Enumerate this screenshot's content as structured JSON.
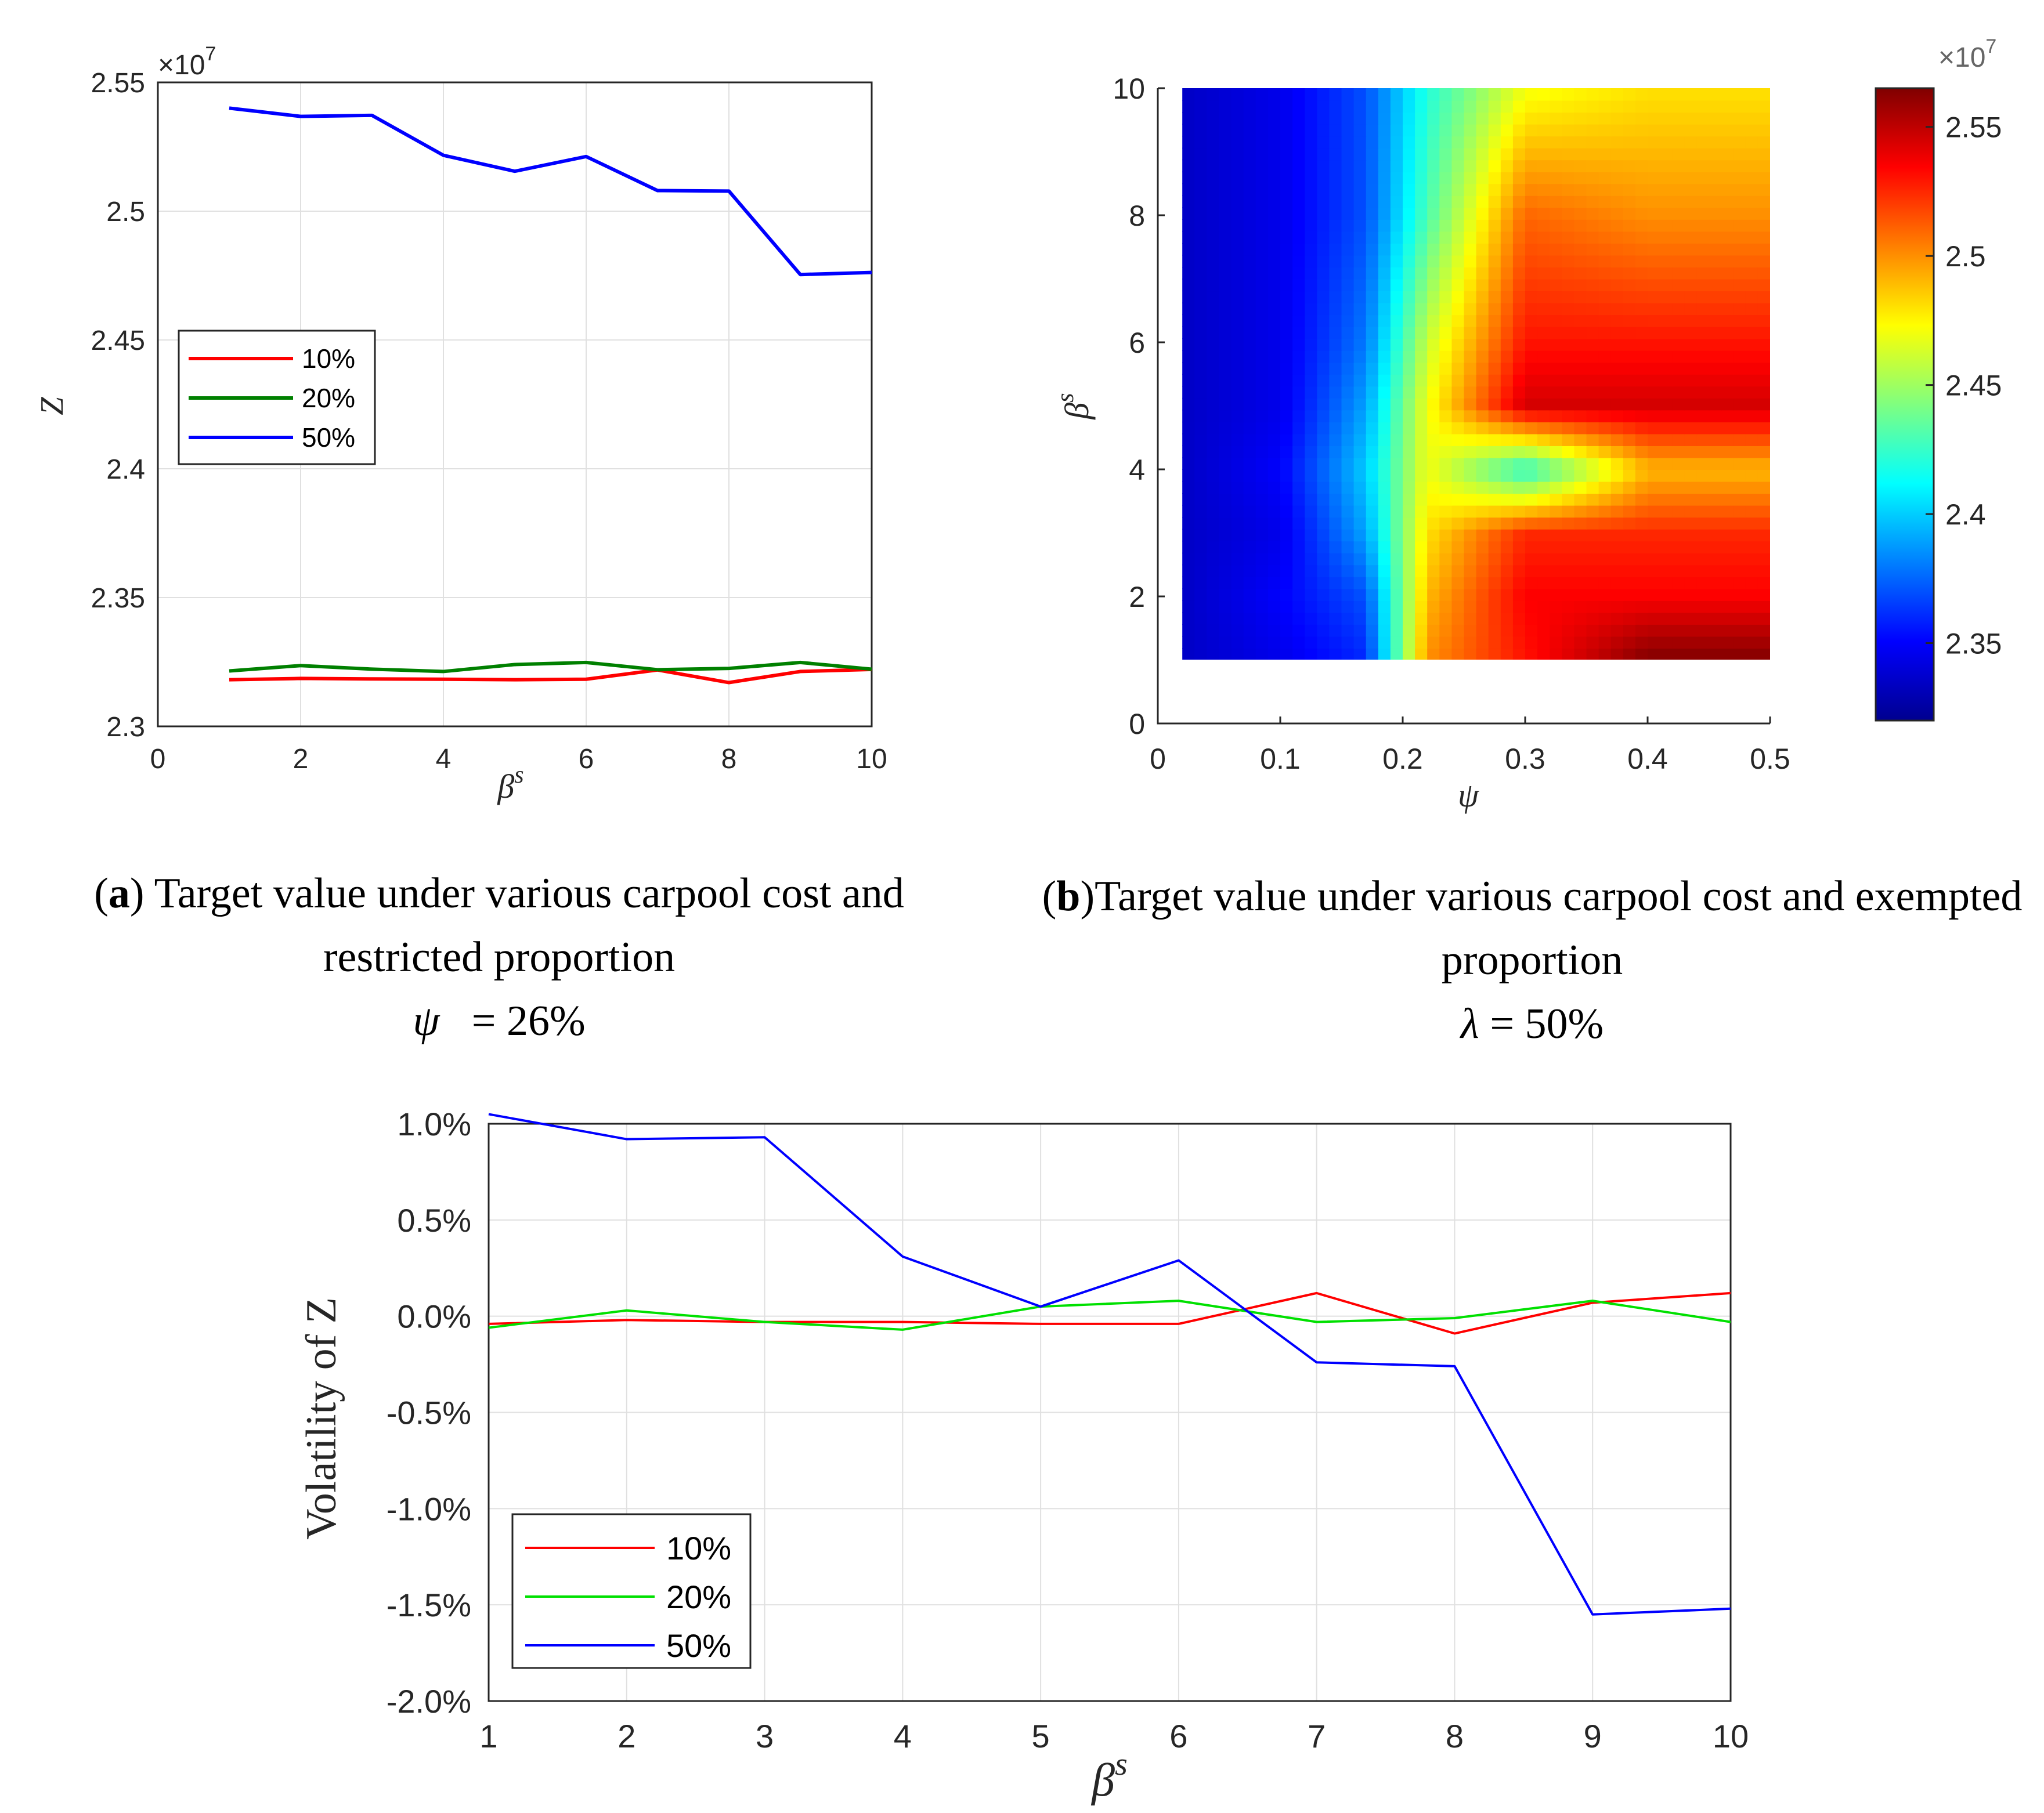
{
  "chart_data": [
    {
      "id": "a",
      "type": "line",
      "xlabel": "β",
      "xlabel_sup": "s",
      "ylabel": "Z",
      "xlim": [
        0,
        10
      ],
      "ylim": [
        2.3,
        2.55
      ],
      "xticks": [
        "0",
        "2",
        "4",
        "6",
        "8",
        "10"
      ],
      "yticks": [
        "2.3",
        "2.35",
        "2.4",
        "2.45",
        "2.5",
        "2.55"
      ],
      "exponent_label": "×10",
      "exponent_sup": "7",
      "grid": true,
      "legend_position": "center-left",
      "x": [
        1,
        2,
        3,
        4,
        5,
        6,
        7,
        8,
        9,
        10
      ],
      "series": [
        {
          "name": "10%",
          "color": "#ff0000",
          "values": [
            2.3181,
            2.3186,
            2.3184,
            2.3183,
            2.3181,
            2.3183,
            2.3219,
            2.317,
            2.3213,
            2.3221
          ]
        },
        {
          "name": "20%",
          "color": "#008000",
          "values": [
            2.3215,
            2.3236,
            2.3222,
            2.3213,
            2.324,
            2.3248,
            2.322,
            2.3225,
            2.3248,
            2.3222
          ]
        },
        {
          "name": "50%",
          "color": "#0000ff",
          "values": [
            2.54,
            2.5368,
            2.5372,
            2.5217,
            2.5155,
            2.5212,
            2.508,
            2.5078,
            2.4754,
            2.4762
          ]
        }
      ],
      "caption_tag": "a",
      "caption_text": ") Target value under various carpool cost and restricted proportion",
      "caption_param": "ψ",
      "caption_value": "= 26%"
    },
    {
      "id": "b",
      "type": "heatmap",
      "xlabel": "ψ",
      "ylabel": "β",
      "ylabel_sup": "s",
      "xlim": [
        0,
        0.5
      ],
      "ylim": [
        0,
        10
      ],
      "xticks": [
        "0",
        "0.1",
        "0.2",
        "0.3",
        "0.4",
        "0.5"
      ],
      "yticks": [
        "0",
        "2",
        "4",
        "6",
        "8",
        "10"
      ],
      "colorbar_range": [
        2.32,
        2.565
      ],
      "colorbar_ticks": [
        "2.35",
        "2.4",
        "2.45",
        "2.5",
        "2.55"
      ],
      "colorbar_exponent": "×10",
      "colorbar_exponent_sup": "7",
      "colormap": "jet",
      "data_x_range": [
        0.02,
        0.5
      ],
      "data_y_range": [
        1,
        10
      ],
      "rows": [
        {
          "beta": 10,
          "values": [
            2.335,
            2.345,
            2.37,
            2.42,
            2.47,
            2.48,
            2.48
          ]
        },
        {
          "beta": 8,
          "values": [
            2.335,
            2.345,
            2.37,
            2.43,
            2.51,
            2.5,
            2.5
          ]
        },
        {
          "beta": 6,
          "values": [
            2.335,
            2.345,
            2.38,
            2.46,
            2.53,
            2.53,
            2.53
          ]
        },
        {
          "beta": 5,
          "values": [
            2.335,
            2.345,
            2.39,
            2.47,
            2.545,
            2.545,
            2.545
          ]
        },
        {
          "beta": 4,
          "values": [
            2.335,
            2.35,
            2.4,
            2.47,
            2.42,
            2.49,
            2.49
          ]
        },
        {
          "beta": 3,
          "values": [
            2.335,
            2.345,
            2.39,
            2.48,
            2.525,
            2.525,
            2.525
          ]
        },
        {
          "beta": 2,
          "values": [
            2.335,
            2.35,
            2.37,
            2.49,
            2.535,
            2.535,
            2.535
          ]
        },
        {
          "beta": 1,
          "values": [
            2.335,
            2.345,
            2.36,
            2.5,
            2.53,
            2.565,
            2.565
          ]
        }
      ],
      "psi_columns": [
        0.02,
        0.1,
        0.17,
        0.22,
        0.3,
        0.4,
        0.5
      ],
      "caption_tag": "b",
      "caption_text": ")Target value under various carpool cost and exempted proportion",
      "caption_param": "λ",
      "caption_value": "= 50%"
    },
    {
      "id": "c",
      "type": "line",
      "xlabel": "β",
      "xlabel_sup": "s",
      "ylabel": "Volatility of Z",
      "xlim": [
        1,
        10
      ],
      "ylim": [
        -2.0,
        1.0
      ],
      "xticks": [
        "1",
        "2",
        "3",
        "4",
        "5",
        "6",
        "7",
        "8",
        "9",
        "10"
      ],
      "yticks": [
        "-2.0%",
        "-1.5%",
        "-1.0%",
        "-0.5%",
        "0.0%",
        "0.5%",
        "1.0%"
      ],
      "grid": true,
      "legend_position": "bottom-left",
      "x": [
        1,
        2,
        3,
        4,
        5,
        6,
        7,
        8,
        9,
        10
      ],
      "series": [
        {
          "name": "10%",
          "color": "#ff0000",
          "values": [
            -0.04,
            -0.02,
            -0.03,
            -0.03,
            -0.04,
            -0.04,
            0.12,
            -0.09,
            0.07,
            0.12
          ]
        },
        {
          "name": "20%",
          "color": "#00e000",
          "values": [
            -0.06,
            0.03,
            -0.03,
            -0.07,
            0.05,
            0.08,
            -0.03,
            -0.01,
            0.08,
            -0.03
          ]
        },
        {
          "name": "50%",
          "color": "#0000ff",
          "values": [
            1.05,
            0.92,
            0.93,
            0.31,
            0.05,
            0.29,
            -0.24,
            -0.26,
            -1.55,
            -1.52
          ]
        }
      ]
    }
  ]
}
